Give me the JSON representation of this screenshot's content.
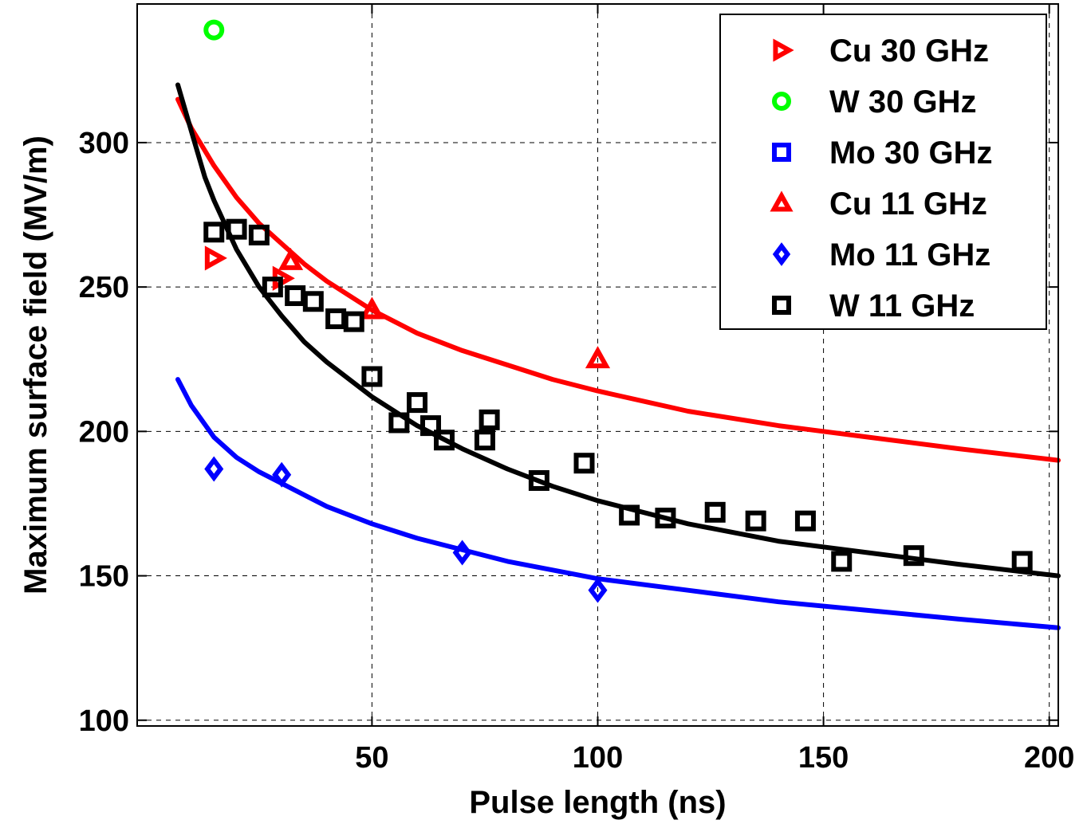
{
  "chart_data": {
    "type": "scatter",
    "title": "",
    "xlabel": "Pulse length (ns)",
    "ylabel": "Maximum surface field (MV/m)",
    "xlim": [
      -2,
      202
    ],
    "ylim": [
      98,
      348
    ],
    "xticks": [
      50,
      100,
      150,
      200
    ],
    "yticks": [
      100,
      150,
      200,
      250,
      300
    ],
    "grid": true,
    "legend_position": "top-right",
    "series": [
      {
        "name": "Cu 30 GHz",
        "marker": "triangle-right",
        "color": "#ff0000",
        "points": [
          [
            15,
            260
          ],
          [
            30,
            253
          ]
        ]
      },
      {
        "name": "W 30 GHz",
        "marker": "circle",
        "color": "#00ff00",
        "points": [
          [
            15,
            339
          ]
        ]
      },
      {
        "name": "Mo 30 GHz",
        "marker": "square",
        "color": "#0000ff",
        "points": []
      },
      {
        "name": "Cu 11 GHz",
        "marker": "triangle-up",
        "color": "#ff0000",
        "points": [
          [
            32,
            259
          ],
          [
            50,
            242
          ],
          [
            100,
            225
          ]
        ]
      },
      {
        "name": "Mo 11 GHz",
        "marker": "diamond",
        "color": "#0000ff",
        "points": [
          [
            15,
            187
          ],
          [
            30,
            185
          ],
          [
            70,
            158
          ],
          [
            100,
            145
          ]
        ]
      },
      {
        "name": "W 11 GHz",
        "marker": "square",
        "color": "#000000",
        "points": [
          [
            15,
            269
          ],
          [
            20,
            270
          ],
          [
            25,
            268
          ],
          [
            28,
            250
          ],
          [
            33,
            247
          ],
          [
            37,
            245
          ],
          [
            42,
            239
          ],
          [
            46,
            238
          ],
          [
            50,
            219
          ],
          [
            56,
            203
          ],
          [
            60,
            210
          ],
          [
            63,
            202
          ],
          [
            66,
            197
          ],
          [
            75,
            197
          ],
          [
            76,
            204
          ],
          [
            87,
            183
          ],
          [
            97,
            189
          ],
          [
            107,
            171
          ],
          [
            115,
            170
          ],
          [
            126,
            172
          ],
          [
            135,
            169
          ],
          [
            146,
            169
          ],
          [
            154,
            155
          ],
          [
            170,
            157
          ],
          [
            194,
            155
          ]
        ]
      }
    ],
    "fit_curves": [
      {
        "color": "#ff0000",
        "x": [
          7,
          10,
          15,
          20,
          25,
          30,
          35,
          40,
          50,
          60,
          70,
          80,
          90,
          100,
          120,
          140,
          160,
          180,
          202
        ],
        "y": [
          315,
          305,
          292,
          281,
          272,
          265,
          258,
          252,
          242,
          234,
          228,
          223,
          218,
          214,
          207,
          202,
          198,
          194,
          190
        ]
      },
      {
        "color": "#000000",
        "x": [
          7,
          10,
          13,
          15,
          20,
          25,
          30,
          35,
          40,
          50,
          60,
          70,
          80,
          90,
          100,
          120,
          140,
          160,
          180,
          202
        ],
        "y": [
          320,
          304,
          288,
          280,
          263,
          250,
          240,
          231,
          224,
          212,
          202,
          194,
          187,
          181,
          176,
          168,
          162,
          158,
          154,
          150
        ]
      },
      {
        "color": "#0000ff",
        "x": [
          7,
          10,
          15,
          20,
          25,
          30,
          40,
          50,
          60,
          70,
          80,
          90,
          100,
          120,
          140,
          160,
          180,
          202
        ],
        "y": [
          218,
          209,
          198,
          191,
          186,
          182,
          174,
          168,
          163,
          159,
          155,
          152,
          149,
          145,
          141,
          138,
          135,
          132
        ]
      }
    ]
  }
}
